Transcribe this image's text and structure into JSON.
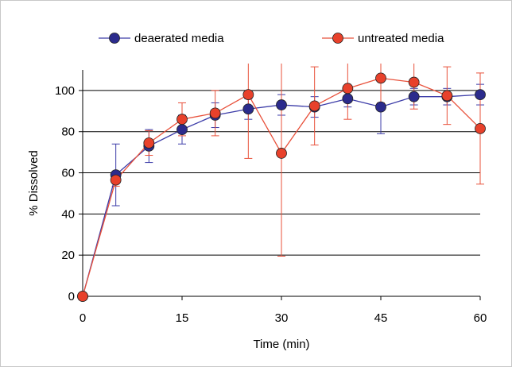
{
  "chart_data": {
    "type": "line",
    "title": "",
    "xlabel": "Time (min)",
    "ylabel": "% Dissolved",
    "xlim": [
      0,
      60
    ],
    "ylim": [
      0,
      110
    ],
    "xticks": [
      0,
      15,
      30,
      45,
      60
    ],
    "yticks": [
      0,
      20,
      40,
      60,
      80,
      100
    ],
    "grid": "horizontal",
    "legend_position": "top",
    "series": [
      {
        "name": "deaerated media",
        "line_color": "#3c3ca8",
        "marker_color": "#2b2b8c",
        "x": [
          0,
          5,
          10,
          15,
          20,
          25,
          30,
          35,
          40,
          45,
          50,
          55,
          60
        ],
        "y": [
          0,
          59,
          73,
          81,
          88,
          91,
          93,
          92,
          96,
          92,
          97,
          97,
          98
        ],
        "error": [
          0,
          15,
          8,
          7,
          6,
          5,
          5,
          5,
          4,
          13,
          4,
          4,
          5
        ]
      },
      {
        "name": "untreated media",
        "line_color": "#e8503a",
        "marker_color": "#e8412b",
        "x": [
          0,
          5,
          10,
          15,
          20,
          25,
          30,
          35,
          40,
          45,
          50,
          55,
          60
        ],
        "y": [
          0,
          56.5,
          74.5,
          86,
          89,
          98,
          69.5,
          92.5,
          101,
          106,
          104,
          97.5,
          81.5
        ],
        "error": [
          0,
          3,
          6,
          8,
          11,
          31,
          50,
          19,
          15,
          12,
          13,
          14,
          27
        ]
      }
    ]
  }
}
